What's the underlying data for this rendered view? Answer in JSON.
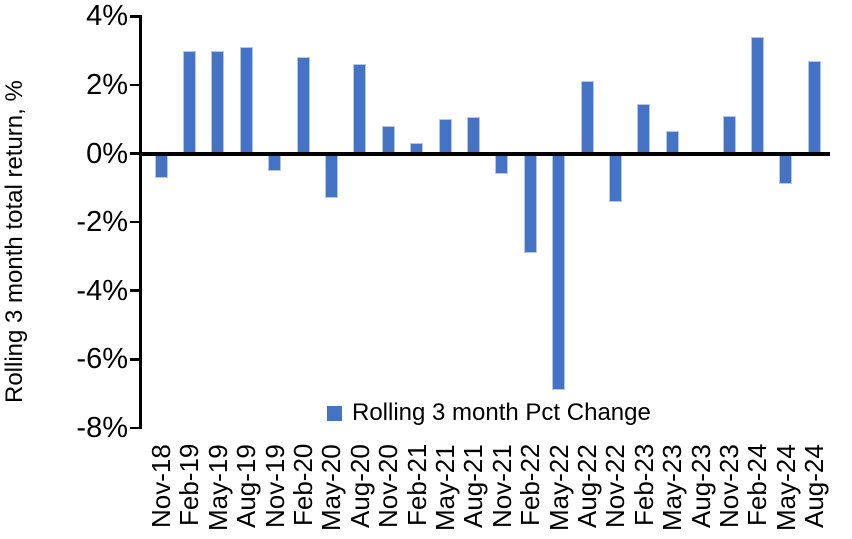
{
  "chart_data": {
    "type": "bar",
    "title": "",
    "xlabel": "",
    "ylabel": "Rolling 3 month total return, %",
    "legend": "Rolling 3 month Pct Change",
    "legend_position": "bottom-center",
    "grid": false,
    "ylim": [
      -8,
      4
    ],
    "y_ticks": [
      4,
      2,
      0,
      -2,
      -4,
      -6,
      -8
    ],
    "y_tick_labels": [
      "4%",
      "2%",
      "0%",
      "-2%",
      "-4%",
      "-6%",
      "-8%"
    ],
    "x_tick_rotation": 90,
    "categories": [
      "Nov-18",
      "Feb-19",
      "May-19",
      "Aug-19",
      "Nov-19",
      "Feb-20",
      "May-20",
      "Aug-20",
      "Nov-20",
      "Feb-21",
      "May-21",
      "Aug-21",
      "Nov-21",
      "Feb-22",
      "May-22",
      "Aug-22",
      "Nov-22",
      "Feb-23",
      "May-23",
      "Aug-23",
      "Nov-23",
      "Feb-24",
      "May-24",
      "Aug-24"
    ],
    "values": [
      -0.7,
      3.0,
      3.0,
      3.1,
      -0.5,
      2.8,
      -1.3,
      2.6,
      0.8,
      0.3,
      1.0,
      1.05,
      -0.6,
      -2.9,
      -6.9,
      2.1,
      -1.4,
      1.45,
      0.65,
      0.0,
      1.1,
      3.4,
      -0.9,
      2.7
    ],
    "colors": {
      "bar_fill": "#4472C4",
      "bar_border": "#B4C7E7",
      "axis": "#000000",
      "text": "#000000",
      "background": "#FFFFFF"
    }
  }
}
